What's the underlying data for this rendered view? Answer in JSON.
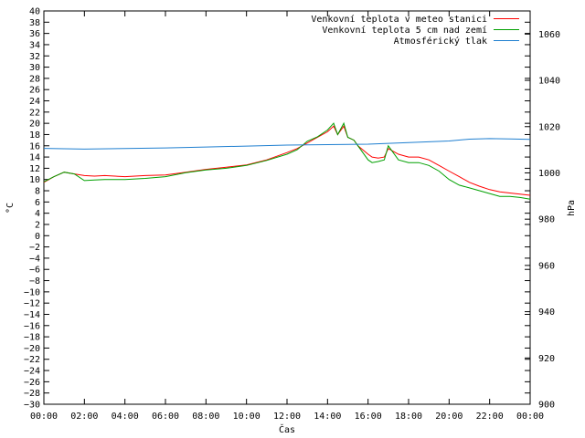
{
  "chart_data": {
    "type": "line",
    "xlabel": "Čas",
    "ylabel": "°C",
    "y2label": "hPa",
    "x_ticks": [
      "00:00",
      "02:00",
      "04:00",
      "06:00",
      "08:00",
      "10:00",
      "12:00",
      "14:00",
      "16:00",
      "18:00",
      "20:00",
      "22:00",
      "00:00"
    ],
    "x_range_hours": [
      0,
      24
    ],
    "ylim": [
      -30,
      40
    ],
    "y_ticks": [
      40,
      38,
      36,
      34,
      32,
      30,
      28,
      26,
      24,
      22,
      20,
      18,
      16,
      14,
      12,
      10,
      8,
      6,
      4,
      2,
      0,
      -2,
      -4,
      -6,
      -8,
      -10,
      -12,
      -14,
      -16,
      -18,
      -20,
      -22,
      -24,
      -26,
      -28,
      -30
    ],
    "y_tick_labels": [
      "40",
      "38",
      "36",
      "34",
      "32",
      "30",
      "28",
      "26",
      "24",
      "22",
      "20",
      "18",
      "16",
      "14",
      "12",
      "10",
      "8",
      "6",
      "4",
      "2",
      "0",
      "−2",
      "−4",
      "−6",
      "−8",
      "−10",
      "−12",
      "−14",
      "−16",
      "−18",
      "−20",
      "−22",
      "−24",
      "−26",
      "−28",
      "−30"
    ],
    "y2lim": [
      900,
      1070
    ],
    "y2_ticks": [
      1060,
      1040,
      1020,
      1000,
      980,
      960,
      940,
      920,
      900
    ],
    "grid": false,
    "legend_position": "top-right",
    "series": [
      {
        "name": "Venkovní teplota v meteo stanici",
        "color": "#ff0000",
        "axis": "left",
        "x": [
          0,
          0.5,
          1,
          1.5,
          2,
          2.5,
          3,
          4,
          5,
          6,
          7,
          8,
          9,
          10,
          11,
          12,
          12.5,
          13,
          13.5,
          14,
          14.3,
          14.5,
          14.8,
          15,
          15.3,
          15.5,
          16,
          16.2,
          16.5,
          16.8,
          17,
          17.5,
          18,
          18.5,
          19,
          19.5,
          20,
          20.5,
          21,
          21.5,
          22,
          22.5,
          23,
          23.5,
          24
        ],
        "y": [
          9.5,
          10.5,
          11.3,
          11,
          10.7,
          10.6,
          10.7,
          10.5,
          10.7,
          10.8,
          11.3,
          11.8,
          12.2,
          12.6,
          13.5,
          14.8,
          15.5,
          16.5,
          17.5,
          18.5,
          19.5,
          18,
          19.5,
          17.5,
          17,
          16,
          14.5,
          14,
          13.8,
          14,
          15.5,
          14.5,
          14,
          14,
          13.5,
          12.5,
          11.5,
          10.5,
          9.5,
          8.8,
          8.2,
          7.8,
          7.6,
          7.4,
          7.2
        ]
      },
      {
        "name": "Venkovní teplota 5 cm nad zemí",
        "color": "#00a000",
        "axis": "left",
        "x": [
          0,
          0.5,
          1,
          1.5,
          2,
          2.5,
          3,
          4,
          5,
          6,
          7,
          8,
          9,
          10,
          11,
          12,
          12.5,
          13,
          13.5,
          14,
          14.3,
          14.5,
          14.8,
          15,
          15.3,
          15.5,
          16,
          16.2,
          16.5,
          16.8,
          17,
          17.5,
          18,
          18.5,
          19,
          19.5,
          20,
          20.5,
          21,
          21.5,
          22,
          22.5,
          23,
          23.5,
          24
        ],
        "y": [
          9.6,
          10.5,
          11.3,
          11,
          9.8,
          9.9,
          10,
          10,
          10.2,
          10.5,
          11.2,
          11.7,
          12,
          12.5,
          13.4,
          14.5,
          15.3,
          16.8,
          17.6,
          18.8,
          20,
          18,
          20,
          17.5,
          17,
          16,
          13.5,
          13,
          13.2,
          13.5,
          16,
          13.5,
          13,
          13,
          12.5,
          11.5,
          10,
          9,
          8.5,
          8,
          7.5,
          7,
          7,
          6.8,
          6.5
        ]
      },
      {
        "name": "Atmosférický tlak",
        "color": "#1f7fd0",
        "axis": "right",
        "x": [
          0,
          2,
          4,
          6,
          8,
          10,
          12,
          14,
          16,
          18,
          20,
          21,
          22,
          23,
          24
        ],
        "y": [
          1010.6,
          1010.3,
          1010.5,
          1010.8,
          1011.2,
          1011.6,
          1012,
          1012.2,
          1012.4,
          1013.1,
          1013.8,
          1014.6,
          1014.8,
          1014.7,
          1014.5
        ]
      }
    ]
  }
}
